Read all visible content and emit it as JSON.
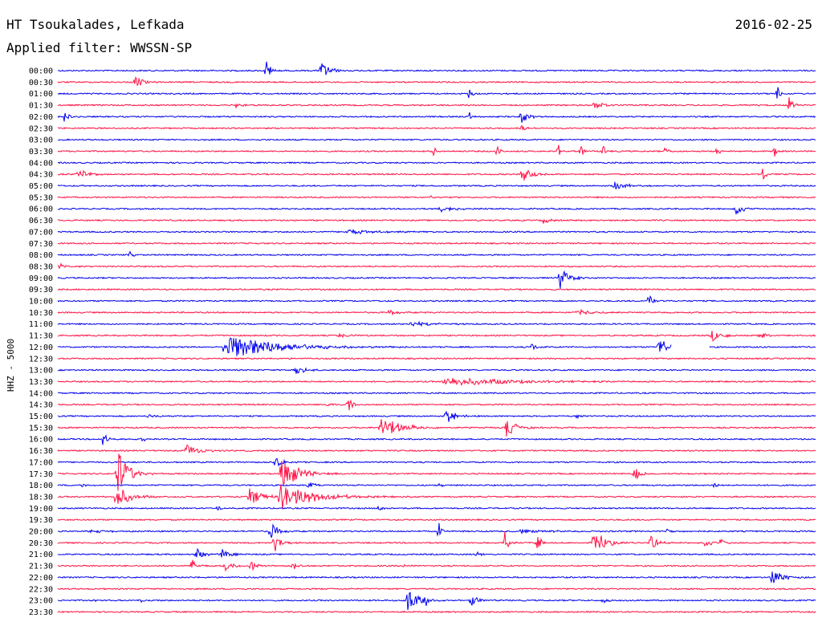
{
  "header": {
    "station": "HT Tsoukalades, Lefkada",
    "date": "2016-02-25",
    "filter": "Applied filter: WWSSN-SP"
  },
  "colors": {
    "blue": "#0000ee",
    "red": "#ff1144"
  },
  "chart_data": {
    "type": "line",
    "title": "HT Tsoukalades, Lefkada",
    "ylabel": "HHZ - 5000",
    "color_order": [
      "blue",
      "red"
    ],
    "traces": [
      {
        "label": "00:00",
        "color": "blue",
        "events": [
          {
            "t": 0.275,
            "a": 1.0,
            "d": 0.005
          },
          {
            "t": 0.347,
            "a": 0.9,
            "d": 0.01
          }
        ]
      },
      {
        "label": "00:30",
        "color": "red",
        "events": [
          {
            "t": 0.102,
            "a": 0.5,
            "d": 0.01
          }
        ]
      },
      {
        "label": "01:00",
        "color": "blue",
        "events": [
          {
            "t": 0.543,
            "a": 1.0,
            "d": 0.003
          },
          {
            "t": 0.949,
            "a": 0.9,
            "d": 0.003
          }
        ]
      },
      {
        "label": "01:30",
        "color": "red",
        "events": [
          {
            "t": 0.235,
            "a": 0.2,
            "d": 0.01
          },
          {
            "t": 0.707,
            "a": 0.4,
            "d": 0.014
          },
          {
            "t": 0.965,
            "a": 1.0,
            "d": 0.004
          }
        ]
      },
      {
        "label": "02:00",
        "color": "blue",
        "events": [
          {
            "t": 0.008,
            "a": 0.6,
            "d": 0.006
          },
          {
            "t": 0.612,
            "a": 0.6,
            "d": 0.008
          },
          {
            "t": 0.543,
            "a": 0.5,
            "d": 0.003
          }
        ]
      },
      {
        "label": "02:30",
        "color": "red",
        "events": [
          {
            "t": 0.612,
            "a": 0.3,
            "d": 0.005
          }
        ]
      },
      {
        "label": "03:00",
        "color": "blue",
        "events": []
      },
      {
        "label": "03:30",
        "color": "red",
        "events": [
          {
            "t": 0.495,
            "a": 0.7,
            "d": 0.003
          },
          {
            "t": 0.579,
            "a": 0.6,
            "d": 0.004
          },
          {
            "t": 0.66,
            "a": 0.8,
            "d": 0.003
          },
          {
            "t": 0.69,
            "a": 0.8,
            "d": 0.003
          },
          {
            "t": 0.72,
            "a": 0.8,
            "d": 0.003
          },
          {
            "t": 0.802,
            "a": 0.6,
            "d": 0.003
          },
          {
            "t": 0.87,
            "a": 0.7,
            "d": 0.003
          },
          {
            "t": 0.945,
            "a": 0.6,
            "d": 0.004
          }
        ]
      },
      {
        "label": "04:00",
        "color": "blue",
        "events": []
      },
      {
        "label": "04:30",
        "color": "red",
        "events": [
          {
            "t": 0.027,
            "a": 0.6,
            "d": 0.01
          },
          {
            "t": 0.613,
            "a": 1.0,
            "d": 0.01
          },
          {
            "t": 0.93,
            "a": 1.0,
            "d": 0.003
          }
        ]
      },
      {
        "label": "05:00",
        "color": "blue",
        "events": [
          {
            "t": 0.735,
            "a": 0.4,
            "d": 0.014
          }
        ]
      },
      {
        "label": "05:30",
        "color": "red",
        "events": [
          {
            "t": 0.49,
            "a": 0.2,
            "d": 0.005
          }
        ]
      },
      {
        "label": "06:00",
        "color": "blue",
        "events": [
          {
            "t": 0.505,
            "a": 0.3,
            "d": 0.02
          },
          {
            "t": 0.895,
            "a": 1.0,
            "d": 0.006
          }
        ]
      },
      {
        "label": "06:30",
        "color": "red",
        "events": [
          {
            "t": 0.64,
            "a": 0.3,
            "d": 0.008
          }
        ]
      },
      {
        "label": "07:00",
        "color": "blue",
        "events": [
          {
            "t": 0.38,
            "a": 0.25,
            "d": 0.03
          }
        ]
      },
      {
        "label": "07:30",
        "color": "red",
        "events": []
      },
      {
        "label": "08:00",
        "color": "blue",
        "events": [
          {
            "t": 0.095,
            "a": 0.3,
            "d": 0.004
          }
        ]
      },
      {
        "label": "08:30",
        "color": "red",
        "events": [
          {
            "t": 0.0,
            "a": 0.3,
            "d": 0.01
          }
        ]
      },
      {
        "label": "09:00",
        "color": "blue",
        "events": [
          {
            "t": 0.663,
            "a": 1.0,
            "d": 0.01
          }
        ]
      },
      {
        "label": "09:30",
        "color": "red",
        "events": []
      },
      {
        "label": "10:00",
        "color": "blue",
        "events": [
          {
            "t": 0.78,
            "a": 0.7,
            "d": 0.005
          }
        ]
      },
      {
        "label": "10:30",
        "color": "red",
        "events": [
          {
            "t": 0.438,
            "a": 0.3,
            "d": 0.01
          },
          {
            "t": 0.685,
            "a": 0.25,
            "d": 0.02
          }
        ]
      },
      {
        "label": "11:00",
        "color": "blue",
        "events": [
          {
            "t": 0.465,
            "a": 0.2,
            "d": 0.03
          }
        ]
      },
      {
        "label": "11:30",
        "color": "red",
        "events": [
          {
            "t": 0.37,
            "a": 0.15,
            "d": 0.02
          },
          {
            "t": 0.863,
            "a": 0.5,
            "d": 0.015
          },
          {
            "t": 0.925,
            "a": 0.4,
            "d": 0.01
          }
        ]
      },
      {
        "label": "12:00",
        "color": "blue",
        "events": [
          {
            "t": 0.22,
            "a": 1.2,
            "d": 0.06
          },
          {
            "t": 0.625,
            "a": 0.5,
            "d": 0.005
          },
          {
            "t": 0.793,
            "a": 1.0,
            "d": 0.01
          }
        ],
        "gap": [
          0.81,
          0.86
        ]
      },
      {
        "label": "12:30",
        "color": "red",
        "events": []
      },
      {
        "label": "13:00",
        "color": "blue",
        "events": [
          {
            "t": 0.312,
            "a": 0.6,
            "d": 0.01
          }
        ]
      },
      {
        "label": "13:30",
        "color": "red",
        "events": [
          {
            "t": 0.51,
            "a": 0.4,
            "d": 0.08
          }
        ]
      },
      {
        "label": "14:00",
        "color": "blue",
        "events": []
      },
      {
        "label": "14:30",
        "color": "red",
        "events": [
          {
            "t": 0.349,
            "a": 0.4,
            "d": 0.006
          },
          {
            "t": 0.383,
            "a": 0.7,
            "d": 0.006
          }
        ]
      },
      {
        "label": "15:00",
        "color": "blue",
        "events": [
          {
            "t": 0.12,
            "a": 0.2,
            "d": 0.008
          },
          {
            "t": 0.512,
            "a": 0.8,
            "d": 0.01
          },
          {
            "t": 0.685,
            "a": 0.3,
            "d": 0.004
          }
        ]
      },
      {
        "label": "15:30",
        "color": "red",
        "events": [
          {
            "t": 0.425,
            "a": 1.0,
            "d": 0.025
          },
          {
            "t": 0.592,
            "a": 0.9,
            "d": 0.012
          }
        ]
      },
      {
        "label": "16:00",
        "color": "blue",
        "events": [
          {
            "t": 0.059,
            "a": 0.7,
            "d": 0.006
          },
          {
            "t": 0.11,
            "a": 0.4,
            "d": 0.004
          }
        ]
      },
      {
        "label": "16:30",
        "color": "red",
        "events": [
          {
            "t": 0.17,
            "a": 0.6,
            "d": 0.014
          }
        ]
      },
      {
        "label": "17:00",
        "color": "blue",
        "events": [
          {
            "t": 0.285,
            "a": 0.5,
            "d": 0.012
          }
        ]
      },
      {
        "label": "17:30",
        "color": "red",
        "events": [
          {
            "t": 0.078,
            "a": 2.6,
            "d": 0.012
          },
          {
            "t": 0.295,
            "a": 1.6,
            "d": 0.02
          },
          {
            "t": 0.761,
            "a": 0.8,
            "d": 0.006
          }
        ]
      },
      {
        "label": "18:00",
        "color": "blue",
        "events": [
          {
            "t": 0.028,
            "a": 0.2,
            "d": 0.01
          },
          {
            "t": 0.33,
            "a": 0.3,
            "d": 0.01
          },
          {
            "t": 0.503,
            "a": 0.2,
            "d": 0.004
          },
          {
            "t": 0.865,
            "a": 0.3,
            "d": 0.004
          }
        ]
      },
      {
        "label": "18:30",
        "color": "red",
        "events": [
          {
            "t": 0.077,
            "a": 1.1,
            "d": 0.015
          },
          {
            "t": 0.253,
            "a": 0.8,
            "d": 0.015
          },
          {
            "t": 0.293,
            "a": 1.2,
            "d": 0.04
          }
        ]
      },
      {
        "label": "19:00",
        "color": "blue",
        "events": [
          {
            "t": 0.21,
            "a": 0.3,
            "d": 0.005
          },
          {
            "t": 0.424,
            "a": 0.4,
            "d": 0.004
          }
        ]
      },
      {
        "label": "19:30",
        "color": "red",
        "events": []
      },
      {
        "label": "20:00",
        "color": "blue",
        "events": [
          {
            "t": 0.035,
            "a": 0.15,
            "d": 0.03
          },
          {
            "t": 0.28,
            "a": 0.8,
            "d": 0.01
          },
          {
            "t": 0.503,
            "a": 0.8,
            "d": 0.004
          },
          {
            "t": 0.61,
            "a": 0.2,
            "d": 0.03
          },
          {
            "t": 0.803,
            "a": 0.3,
            "d": 0.006
          }
        ]
      },
      {
        "label": "20:30",
        "color": "red",
        "events": [
          {
            "t": 0.285,
            "a": 1.0,
            "d": 0.008
          },
          {
            "t": 0.59,
            "a": 1.2,
            "d": 0.004
          },
          {
            "t": 0.632,
            "a": 1.2,
            "d": 0.004
          },
          {
            "t": 0.707,
            "a": 1.5,
            "d": 0.012
          },
          {
            "t": 0.782,
            "a": 0.8,
            "d": 0.008
          },
          {
            "t": 0.853,
            "a": 0.5,
            "d": 0.008
          },
          {
            "t": 0.873,
            "a": 0.4,
            "d": 0.006
          }
        ]
      },
      {
        "label": "21:00",
        "color": "blue",
        "events": [
          {
            "t": 0.183,
            "a": 0.6,
            "d": 0.008
          },
          {
            "t": 0.216,
            "a": 0.6,
            "d": 0.008
          },
          {
            "t": 0.553,
            "a": 0.3,
            "d": 0.006
          }
        ]
      },
      {
        "label": "21:30",
        "color": "red",
        "events": [
          {
            "t": 0.176,
            "a": 0.8,
            "d": 0.006
          },
          {
            "t": 0.22,
            "a": 0.6,
            "d": 0.008
          },
          {
            "t": 0.255,
            "a": 0.5,
            "d": 0.006
          },
          {
            "t": 0.31,
            "a": 0.5,
            "d": 0.006
          },
          {
            "t": 0.455,
            "a": 0.3,
            "d": 0.006
          }
        ]
      },
      {
        "label": "22:00",
        "color": "blue",
        "events": [
          {
            "t": 0.94,
            "a": 1.0,
            "d": 0.012
          }
        ]
      },
      {
        "label": "22:30",
        "color": "red",
        "events": []
      },
      {
        "label": "23:00",
        "color": "blue",
        "events": [
          {
            "t": 0.048,
            "a": 0.2,
            "d": 0.004
          },
          {
            "t": 0.11,
            "a": 0.2,
            "d": 0.004
          },
          {
            "t": 0.46,
            "a": 1.4,
            "d": 0.012
          },
          {
            "t": 0.484,
            "a": 0.5,
            "d": 0.006
          },
          {
            "t": 0.545,
            "a": 0.6,
            "d": 0.008
          },
          {
            "t": 0.72,
            "a": 0.4,
            "d": 0.006
          }
        ]
      },
      {
        "label": "23:30",
        "color": "red",
        "events": []
      }
    ]
  }
}
